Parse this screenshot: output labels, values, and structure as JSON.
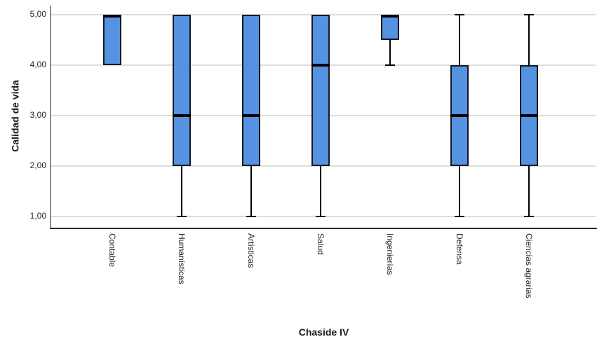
{
  "chart_data": {
    "type": "boxplot",
    "title": "",
    "xlabel": "Chaside IV",
    "ylabel": "Calidad de vida",
    "ylim": [
      1,
      5
    ],
    "grid": true,
    "legend": false,
    "yticks": [
      {
        "value": 5,
        "label": "5,00"
      },
      {
        "value": 4,
        "label": "4,00"
      },
      {
        "value": 3,
        "label": "3,00"
      },
      {
        "value": 2,
        "label": "2,00"
      },
      {
        "value": 1,
        "label": "1,00"
      }
    ],
    "categories": [
      "Contable",
      "Humanísticas",
      "Artísticas",
      "Salud",
      "Ingenierías",
      "Defensa",
      "Ciencias agrarias"
    ],
    "boxes": [
      {
        "category": "Contable",
        "whisker_low": 4,
        "q1": 4,
        "median": 5,
        "q3": 5,
        "whisker_high": 5
      },
      {
        "category": "Humanísticas",
        "whisker_low": 1,
        "q1": 2,
        "median": 3,
        "q3": 5,
        "whisker_high": 5
      },
      {
        "category": "Artísticas",
        "whisker_low": 1,
        "q1": 2,
        "median": 3,
        "q3": 5,
        "whisker_high": 5
      },
      {
        "category": "Salud",
        "whisker_low": 1,
        "q1": 2,
        "median": 4,
        "q3": 5,
        "whisker_high": 5
      },
      {
        "category": "Ingenierías",
        "whisker_low": 4,
        "q1": 4.5,
        "median": 5,
        "q3": 5,
        "whisker_high": 5
      },
      {
        "category": "Defensa",
        "whisker_low": 1,
        "q1": 2,
        "median": 3,
        "q3": 4,
        "whisker_high": 5
      },
      {
        "category": "Ciencias agrarias",
        "whisker_low": 1,
        "q1": 2,
        "median": 3,
        "q3": 4,
        "whisker_high": 5
      }
    ],
    "colors": {
      "box_fill": "#5592e2",
      "box_border": "#15181e",
      "median": "#000000",
      "whisker": "#000000",
      "gridline": "#dcdcdc",
      "x_axis_line": "#2b2b2b",
      "y_axis_line": "#8c8c8c",
      "tick_label": "#262626",
      "background": "#ffffff"
    }
  }
}
